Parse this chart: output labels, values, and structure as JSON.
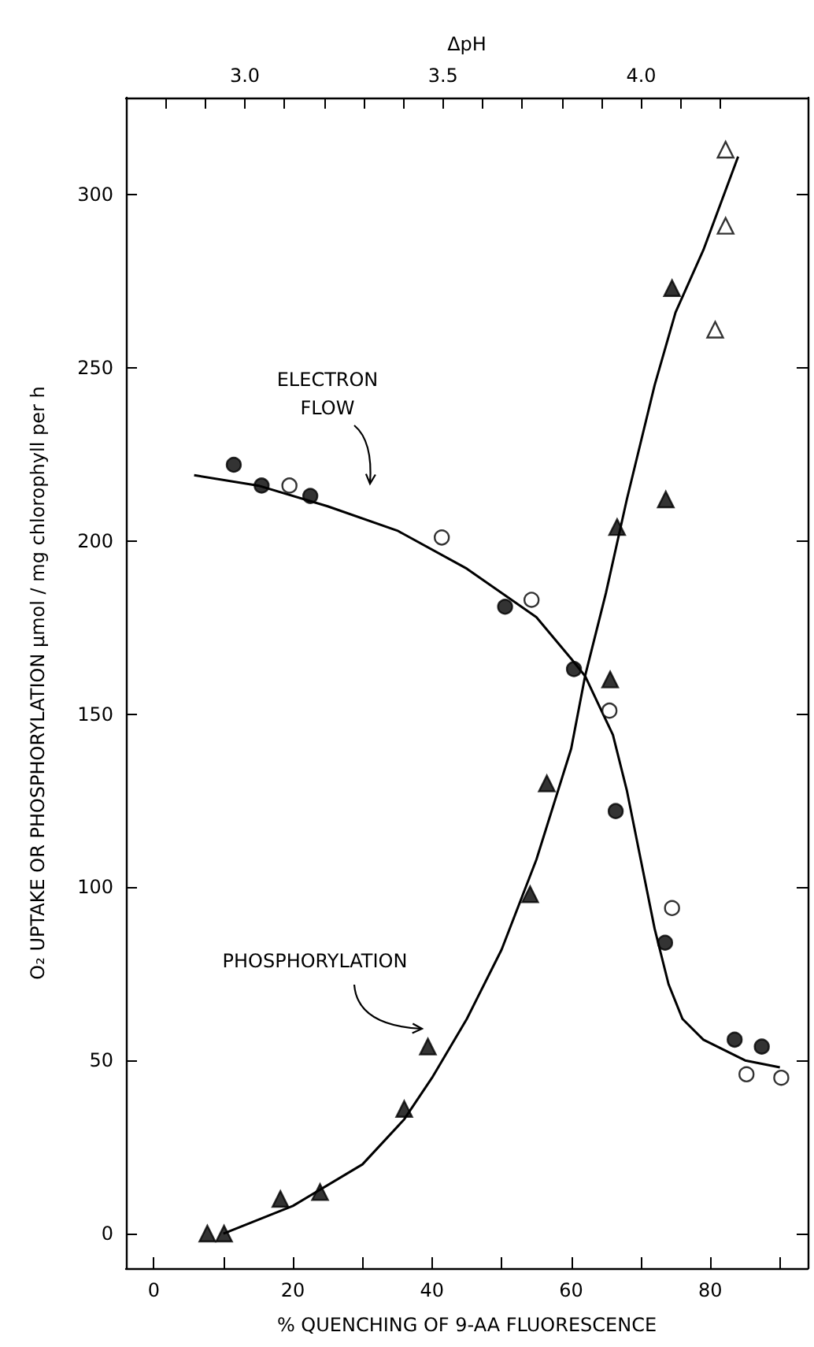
{
  "chart_data": {
    "type": "scatter",
    "xlabel": "% QUENCHING OF 9-AA FLUORESCENCE",
    "x2label": "ΔpH",
    "ylabel": "O₂ UPTAKE OR PHOSPHORYLATION μmol / mg chlorophyll per h",
    "xlim": [
      -4,
      94
    ],
    "xticks": [
      0,
      {
        "value": 10,
        "label": null
      },
      20,
      {
        "value": 30,
        "label": null
      },
      40,
      {
        "value": 50,
        "label": null
      },
      60,
      {
        "value": 70,
        "label": null
      },
      80,
      {
        "value": 90,
        "label": null
      }
    ],
    "x2lim": [
      2.7,
      4.42
    ],
    "x2ticks": [
      {
        "value": 2.8,
        "label": null
      },
      {
        "value": 2.9,
        "label": null
      },
      {
        "value": 3,
        "label": "3.0"
      },
      {
        "value": 3.1,
        "label": null
      },
      {
        "value": 3.2,
        "label": null
      },
      {
        "value": 3.3,
        "label": null
      },
      {
        "value": 3.4,
        "label": null
      },
      {
        "value": 3.5,
        "label": "3.5"
      },
      {
        "value": 3.6,
        "label": null
      },
      {
        "value": 3.7,
        "label": null
      },
      {
        "value": 3.8,
        "label": null
      },
      {
        "value": 3.9,
        "label": null
      },
      {
        "value": 4,
        "label": "4.0"
      },
      {
        "value": 4.1,
        "label": null
      },
      {
        "value": 4.2,
        "label": null
      }
    ],
    "ylim": [
      -10,
      328
    ],
    "yticks": [
      0,
      50,
      100,
      150,
      200,
      250,
      300
    ],
    "grid": false,
    "series": [
      {
        "marker": "circle",
        "color": "#000000",
        "x": [
          11.5,
          15.5,
          22.5,
          50.5,
          60.4,
          66.4,
          73.5,
          83.5,
          87.4
        ],
        "values": [
          222,
          216,
          213,
          181,
          163,
          122,
          84,
          56,
          54
        ]
      },
      {
        "marker": "circle",
        "color": "#ffffff",
        "x": [
          19.5,
          41.4,
          54.3,
          65.5,
          74.5,
          85.2,
          90.2
        ],
        "values": [
          216,
          201,
          183,
          151,
          94,
          46,
          45
        ]
      },
      {
        "marker": "triangle",
        "color": "#000000",
        "x": [
          7.7,
          10.1,
          18.2,
          23.9,
          36,
          39.4,
          54.1,
          56.5,
          65.6,
          66.6,
          73.6,
          74.5
        ],
        "values": [
          0,
          0,
          10,
          12,
          36,
          54,
          98,
          130,
          160,
          204,
          212,
          273
        ]
      },
      {
        "marker": "triangle",
        "color": "#ffffff",
        "x": [
          80.7,
          82.2,
          82.2
        ],
        "values": [
          261,
          291,
          313
        ]
      },
      {
        "type": "line",
        "marker": "none",
        "line_style": "solid",
        "color": "#000000",
        "x": [
          5.8,
          15,
          25,
          35,
          45,
          55,
          60,
          62,
          66,
          68,
          70,
          72,
          74,
          76,
          79,
          85,
          90
        ],
        "values": [
          219,
          216,
          210,
          203,
          192,
          178,
          166,
          161,
          144,
          128,
          108,
          88,
          72,
          62,
          56,
          50,
          48
        ]
      },
      {
        "type": "line",
        "marker": "none",
        "line_style": "solid",
        "color": "#000000",
        "x": [
          10,
          20,
          30,
          36,
          40,
          45,
          50,
          55,
          60,
          62,
          65,
          68,
          72,
          75,
          79,
          84
        ],
        "values": [
          0,
          8,
          20,
          33,
          45,
          62,
          82,
          108,
          140,
          161,
          185,
          212,
          245,
          266,
          284,
          311
        ]
      }
    ],
    "annotations": [
      "ELECTRON\nFLOW",
      "PHOSPHORYLATION"
    ]
  }
}
